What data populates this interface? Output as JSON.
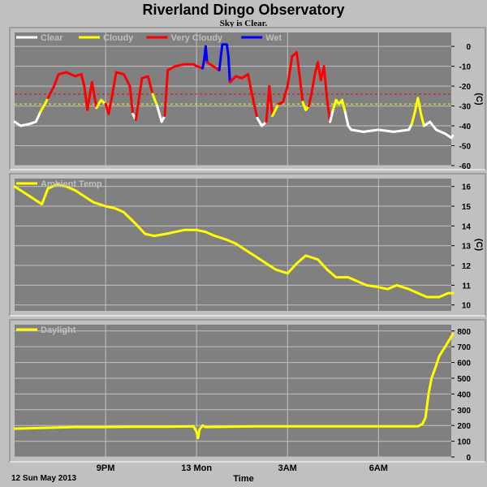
{
  "title": "Riverland Dingo Observatory",
  "subtitle": "Sky is Clear.",
  "footer": {
    "date_label": "12 Sun May 2013",
    "x_label": "Time"
  },
  "colors": {
    "plot_bg": "#808080",
    "grid": "#c0c0c0",
    "clear": "#ffffff",
    "cloudy": "#ffff00",
    "very_cloudy": "#ff0000",
    "wet": "#0000ff",
    "threshold_very_cloudy": "#ff0000",
    "threshold_cloudy": "#ffff00"
  },
  "chart_data": [
    {
      "type": "line",
      "name": "sky-temperature",
      "legend": [
        "Clear",
        "Cloudy",
        "Very Cloudy",
        "Wet"
      ],
      "legend_colors": [
        "#ffffff",
        "#ffff00",
        "#ff0000",
        "#0000ff"
      ],
      "ylabel": "(C)",
      "ylim": [
        -60,
        7
      ],
      "yticks": [
        0,
        -10,
        -20,
        -30,
        -40,
        -50,
        -60
      ],
      "xlim": [
        18.0,
        32.4
      ],
      "xticks": [
        {
          "x": 21,
          "label": "9PM"
        },
        {
          "x": 24,
          "label": "13 Mon"
        },
        {
          "x": 27,
          "label": "3AM"
        },
        {
          "x": 30,
          "label": "6AM"
        }
      ],
      "thresholds": [
        {
          "value": -24,
          "color": "#ff0000"
        },
        {
          "value": -29,
          "color": "#ffff00"
        }
      ],
      "segments": [
        {
          "state": "clear",
          "points": [
            [
              18.0,
              -38
            ],
            [
              18.2,
              -40
            ],
            [
              18.5,
              -39
            ],
            [
              18.7,
              -38
            ],
            [
              18.85,
              -33
            ]
          ]
        },
        {
          "state": "cloudy",
          "points": [
            [
              18.85,
              -33
            ],
            [
              19.0,
              -29
            ],
            [
              19.1,
              -26
            ]
          ]
        },
        {
          "state": "very_cloudy",
          "points": [
            [
              19.1,
              -26
            ],
            [
              19.3,
              -20
            ],
            [
              19.45,
              -14
            ],
            [
              19.7,
              -13
            ],
            [
              20.0,
              -15
            ],
            [
              20.2,
              -14
            ],
            [
              20.3,
              -20
            ],
            [
              20.4,
              -32
            ],
            [
              20.55,
              -18
            ],
            [
              20.7,
              -31
            ]
          ]
        },
        {
          "state": "cloudy",
          "points": [
            [
              20.7,
              -31
            ],
            [
              20.85,
              -27
            ],
            [
              21.0,
              -29
            ]
          ]
        },
        {
          "state": "very_cloudy",
          "points": [
            [
              21.0,
              -29
            ],
            [
              21.1,
              -34
            ],
            [
              21.2,
              -26
            ],
            [
              21.35,
              -13
            ],
            [
              21.6,
              -14
            ],
            [
              21.8,
              -20
            ],
            [
              21.9,
              -34
            ]
          ]
        },
        {
          "state": "clear",
          "points": [
            [
              21.9,
              -34
            ],
            [
              22.0,
              -37
            ]
          ]
        },
        {
          "state": "very_cloudy",
          "points": [
            [
              22.0,
              -37
            ],
            [
              22.2,
              -16
            ],
            [
              22.4,
              -15
            ],
            [
              22.55,
              -24
            ]
          ]
        },
        {
          "state": "cloudy",
          "points": [
            [
              22.55,
              -24
            ],
            [
              22.7,
              -30
            ]
          ]
        },
        {
          "state": "clear",
          "points": [
            [
              22.7,
              -30
            ],
            [
              22.85,
              -38
            ],
            [
              22.95,
              -35
            ]
          ]
        },
        {
          "state": "very_cloudy",
          "points": [
            [
              22.95,
              -35
            ],
            [
              23.05,
              -12
            ],
            [
              23.3,
              -10
            ],
            [
              23.6,
              -9
            ],
            [
              23.9,
              -9
            ],
            [
              24.0,
              -10
            ],
            [
              24.2,
              -11
            ]
          ]
        },
        {
          "state": "wet",
          "points": [
            [
              24.2,
              -11
            ],
            [
              24.25,
              -7
            ],
            [
              24.3,
              0
            ],
            [
              24.35,
              -8
            ]
          ]
        },
        {
          "state": "very_cloudy",
          "points": [
            [
              24.35,
              -8
            ],
            [
              24.55,
              -10
            ],
            [
              24.75,
              -12
            ]
          ]
        },
        {
          "state": "wet",
          "points": [
            [
              24.75,
              -12
            ],
            [
              24.8,
              -5
            ],
            [
              24.85,
              1
            ],
            [
              25.0,
              1
            ],
            [
              25.05,
              -5
            ],
            [
              25.1,
              -18
            ]
          ]
        },
        {
          "state": "very_cloudy",
          "points": [
            [
              25.1,
              -18
            ],
            [
              25.3,
              -15
            ],
            [
              25.5,
              -16
            ],
            [
              25.7,
              -14
            ],
            [
              25.8,
              -22
            ],
            [
              26.0,
              -36
            ]
          ]
        },
        {
          "state": "clear",
          "points": [
            [
              26.0,
              -36
            ],
            [
              26.15,
              -40
            ],
            [
              26.3,
              -38
            ]
          ]
        },
        {
          "state": "very_cloudy",
          "points": [
            [
              26.3,
              -38
            ],
            [
              26.4,
              -20
            ],
            [
              26.5,
              -35
            ]
          ]
        },
        {
          "state": "cloudy",
          "points": [
            [
              26.5,
              -35
            ],
            [
              26.6,
              -32
            ],
            [
              26.7,
              -29
            ]
          ]
        },
        {
          "state": "very_cloudy",
          "points": [
            [
              26.7,
              -29
            ],
            [
              26.85,
              -28
            ],
            [
              27.0,
              -20
            ],
            [
              27.15,
              -5
            ],
            [
              27.3,
              -3
            ],
            [
              27.4,
              -15
            ],
            [
              27.5,
              -28
            ]
          ]
        },
        {
          "state": "cloudy",
          "points": [
            [
              27.5,
              -28
            ],
            [
              27.6,
              -32
            ],
            [
              27.7,
              -30
            ]
          ]
        },
        {
          "state": "very_cloudy",
          "points": [
            [
              27.7,
              -30
            ],
            [
              27.8,
              -23
            ],
            [
              27.9,
              -14
            ],
            [
              28.0,
              -8
            ],
            [
              28.1,
              -17
            ],
            [
              28.2,
              -10
            ],
            [
              28.3,
              -26
            ],
            [
              28.4,
              -38
            ]
          ]
        },
        {
          "state": "clear",
          "points": [
            [
              28.4,
              -38
            ],
            [
              28.5,
              -32
            ]
          ]
        },
        {
          "state": "cloudy",
          "points": [
            [
              28.5,
              -32
            ],
            [
              28.6,
              -27
            ],
            [
              28.7,
              -29
            ],
            [
              28.8,
              -27
            ],
            [
              28.9,
              -33
            ]
          ]
        },
        {
          "state": "clear",
          "points": [
            [
              28.9,
              -33
            ],
            [
              29.0,
              -40
            ],
            [
              29.1,
              -42
            ],
            [
              29.5,
              -43
            ],
            [
              30.0,
              -42
            ],
            [
              30.5,
              -43
            ],
            [
              31.0,
              -42
            ],
            [
              31.1,
              -39
            ]
          ]
        },
        {
          "state": "cloudy",
          "points": [
            [
              31.1,
              -39
            ],
            [
              31.2,
              -33
            ],
            [
              31.3,
              -26
            ],
            [
              31.4,
              -34
            ],
            [
              31.5,
              -40
            ]
          ]
        },
        {
          "state": "clear",
          "points": [
            [
              31.5,
              -40
            ],
            [
              31.7,
              -38
            ],
            [
              31.9,
              -42
            ],
            [
              32.2,
              -44
            ],
            [
              32.4,
              -46
            ],
            [
              32.45,
              -45
            ]
          ]
        }
      ]
    },
    {
      "type": "line",
      "name": "ambient-temperature",
      "legend": [
        "Ambient Temp"
      ],
      "legend_colors": [
        "#ffff00"
      ],
      "ylabel": "(C)",
      "ylim": [
        9.7,
        16.4
      ],
      "yticks": [
        10,
        11,
        12,
        13,
        14,
        15,
        16
      ],
      "xlim": [
        18.0,
        32.4
      ],
      "x": [
        18.0,
        18.3,
        18.6,
        18.9,
        19.1,
        19.4,
        19.7,
        20.0,
        20.3,
        20.6,
        21.0,
        21.3,
        21.6,
        22.0,
        22.3,
        22.6,
        23.0,
        23.3,
        23.6,
        24.0,
        24.3,
        24.6,
        25.0,
        25.3,
        25.6,
        26.0,
        26.3,
        26.6,
        27.0,
        27.3,
        27.6,
        28.0,
        28.3,
        28.6,
        29.0,
        29.3,
        29.6,
        30.0,
        30.3,
        30.6,
        31.0,
        31.3,
        31.6,
        32.0,
        32.3,
        32.45
      ],
      "y": [
        16.0,
        15.7,
        15.4,
        15.1,
        15.9,
        16.1,
        16.0,
        15.8,
        15.5,
        15.2,
        15.0,
        14.9,
        14.7,
        14.1,
        13.6,
        13.5,
        13.6,
        13.7,
        13.8,
        13.8,
        13.7,
        13.5,
        13.3,
        13.1,
        12.8,
        12.4,
        12.1,
        11.8,
        11.6,
        12.1,
        12.5,
        12.3,
        11.8,
        11.4,
        11.4,
        11.2,
        11.0,
        10.9,
        10.8,
        11.0,
        10.8,
        10.6,
        10.4,
        10.4,
        10.6,
        10.6
      ]
    },
    {
      "type": "line",
      "name": "daylight",
      "legend": [
        "Daylight"
      ],
      "legend_colors": [
        "#ffff00"
      ],
      "ylim": [
        0,
        840
      ],
      "yticks": [
        0,
        100,
        200,
        300,
        400,
        500,
        600,
        700,
        800
      ],
      "xlim": [
        18.0,
        32.4
      ],
      "x": [
        18.0,
        19.0,
        20.0,
        21.0,
        22.0,
        23.0,
        23.9,
        24.0,
        24.05,
        24.1,
        24.2,
        24.3,
        25.0,
        26.0,
        27.0,
        28.0,
        29.0,
        30.0,
        30.6,
        31.3,
        31.45,
        31.55,
        31.65,
        31.75,
        31.9,
        32.0,
        32.2,
        32.45
      ],
      "y": [
        180,
        185,
        190,
        190,
        192,
        192,
        195,
        160,
        120,
        175,
        200,
        190,
        192,
        195,
        195,
        195,
        195,
        195,
        195,
        195,
        210,
        250,
        400,
        500,
        580,
        640,
        700,
        780
      ]
    }
  ]
}
